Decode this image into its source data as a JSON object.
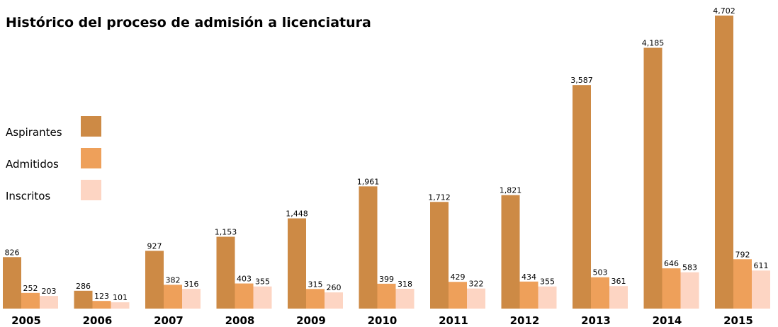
{
  "chart_data": {
    "type": "bar",
    "title": "Histórico del proceso de admisión a licenciatura",
    "categories": [
      "2005",
      "2006",
      "2007",
      "2008",
      "2009",
      "2010",
      "2011",
      "2012",
      "2013",
      "2014",
      "2015"
    ],
    "series": [
      {
        "name": "Aspirantes",
        "color": "#cd8a45",
        "values": [
          826,
          286,
          927,
          1153,
          1448,
          1961,
          1712,
          1821,
          3587,
          4185,
          4702
        ],
        "value_labels": [
          "826",
          "286",
          "927",
          "1,153",
          "1,448",
          "1,961",
          "1,712",
          "1,821",
          "3,587",
          "4,185",
          "4,702"
        ]
      },
      {
        "name": "Admitidos",
        "color": "#eea05a",
        "values": [
          252,
          123,
          382,
          403,
          315,
          399,
          429,
          434,
          503,
          646,
          792
        ]
      },
      {
        "name": "Inscritos",
        "color": "#fdd5c3",
        "values": [
          203,
          101,
          316,
          355,
          260,
          318,
          322,
          355,
          361,
          583,
          611
        ]
      }
    ]
  }
}
